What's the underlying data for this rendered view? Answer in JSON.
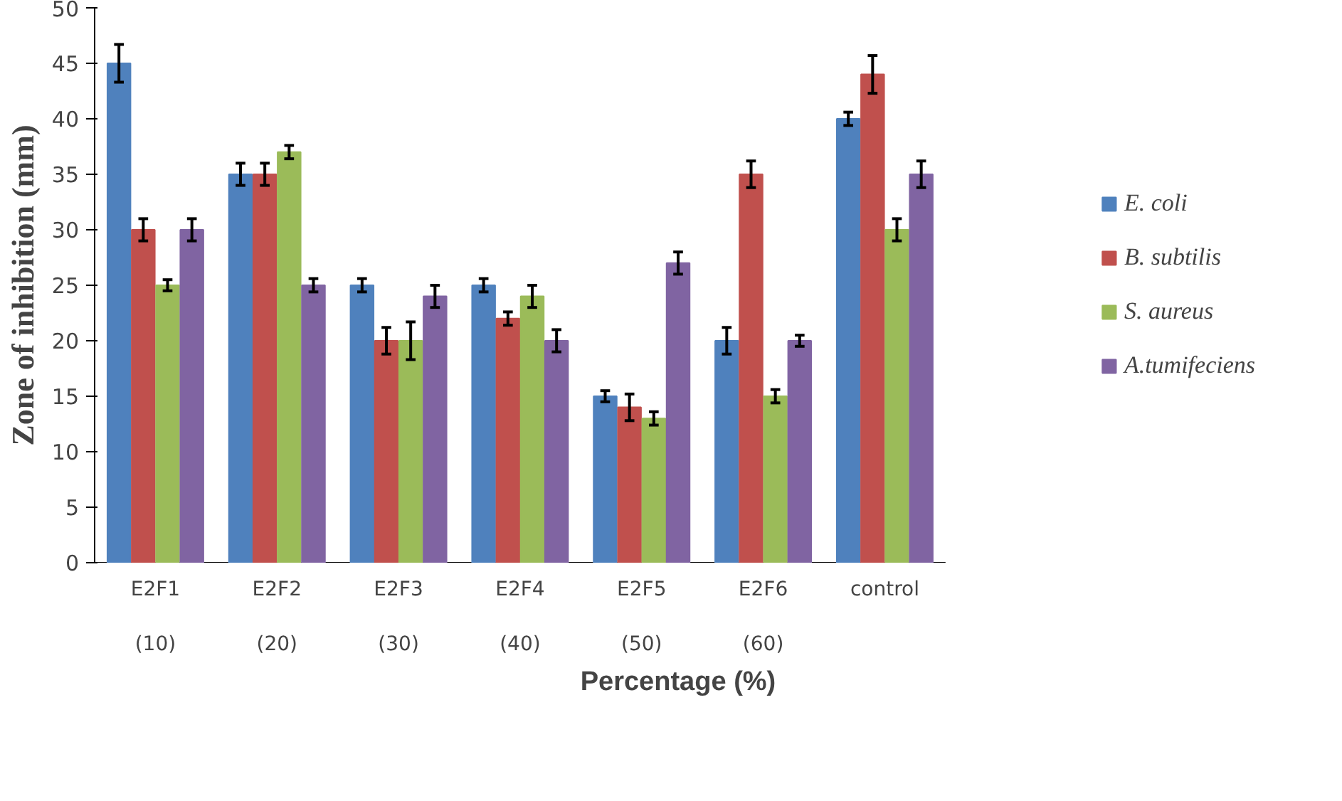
{
  "chart_data": {
    "type": "bar",
    "xlabel": "Percentage (%)",
    "ylabel": "Zone of inhibition (mm)",
    "categories": [
      "E2F1\n\n(10)",
      "E2F2\n\n(20)",
      "E2F3\n\n(30)",
      "E2F4\n\n(40)",
      "E2F5\n\n(50)",
      "E2F6\n\n(60)",
      "control"
    ],
    "ylim": [
      0,
      50
    ],
    "yticks": [
      0,
      5,
      10,
      15,
      20,
      25,
      30,
      35,
      40,
      45,
      50
    ],
    "grid": false,
    "legend": "right",
    "series": [
      {
        "name": "E. coli",
        "color": "#4f81bd",
        "values": [
          45,
          35,
          25,
          25,
          15,
          20,
          40
        ],
        "errors": [
          1.7,
          1,
          0.6,
          0.6,
          0.5,
          1.2,
          0.6
        ]
      },
      {
        "name": "B. subtilis",
        "color": "#c0504d",
        "values": [
          30,
          35,
          20,
          22,
          14,
          35,
          44
        ],
        "errors": [
          1,
          1,
          1.2,
          0.6,
          1.2,
          1.2,
          1.7
        ]
      },
      {
        "name": "S. aureus",
        "color": "#9bbb59",
        "values": [
          25,
          37,
          20,
          24,
          13,
          15,
          30
        ],
        "errors": [
          0.5,
          0.6,
          1.7,
          1,
          0.6,
          0.6,
          1
        ]
      },
      {
        "name": "A.tumifeciens",
        "color": "#8064a2",
        "values": [
          30,
          25,
          24,
          20,
          27,
          20,
          35
        ],
        "errors": [
          1,
          0.6,
          1,
          1,
          1,
          0.5,
          1.2
        ]
      }
    ]
  }
}
